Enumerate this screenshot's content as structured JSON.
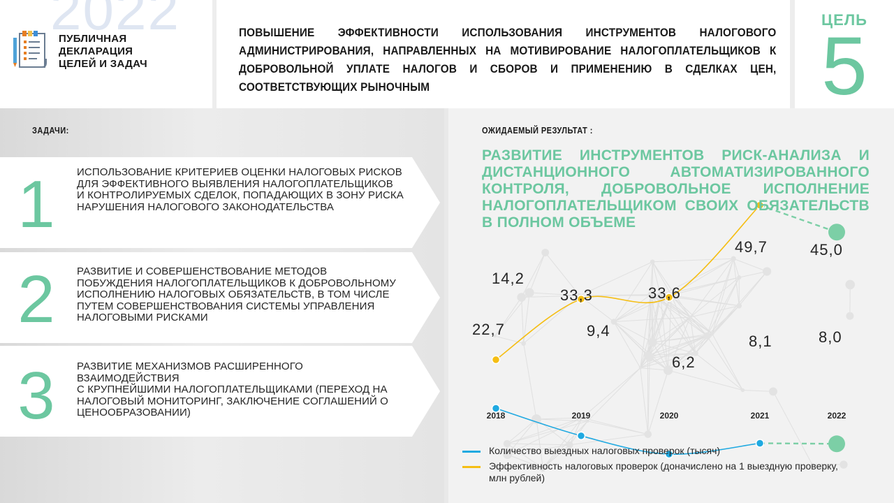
{
  "header": {
    "brand_year": "2022",
    "brand_lines": [
      "ПУБЛИЧНАЯ",
      "ДЕКЛАРАЦИЯ",
      "ЦЕЛЕЙ И ЗАДАЧ"
    ],
    "title": "ПОВЫШЕНИЕ ЭФФЕКТИВНОСТИ ИСПОЛЬЗОВАНИЯ ИНСТРУМЕНТОВ НАЛОГОВОГО АДМИНИСТРИРОВАНИЯ, НАПРАВЛЕННЫХ НА МОТИВИРОВАНИЕ НАЛОГОПЛАТЕЛЬЩИКОВ К ДОБРОВОЛЬНОЙ УПЛАТЕ НАЛОГОВ И СБОРОВ И ПРИМЕНЕНИЮ В СДЕЛКАХ ЦЕН, СООТВЕТСТВУЮЩИХ РЫНОЧНЫМ",
    "goal_label": "ЦЕЛЬ",
    "goal_number": "5"
  },
  "tasks": {
    "label": "ЗАДАЧИ:",
    "items": [
      {
        "number": "1",
        "text": "ИСПОЛЬЗОВАНИЕ КРИТЕРИЕВ ОЦЕНКИ НАЛОГОВЫХ РИСКОВ ДЛЯ ЭФФЕКТИВНОГО ВЫЯВЛЕНИЯ НАЛОГОПЛАТЕЛЬЩИКОВ\nИ КОНТРОЛИРУЕМЫХ СДЕЛОК, ПОПАДАЮЩИХ В ЗОНУ РИСКА НАРУШЕНИЯ НАЛОГОВОГО ЗАКОНОДАТЕЛЬСТВА"
      },
      {
        "number": "2",
        "text": "РАЗВИТИЕ И СОВЕРШЕНСТВОВАНИЕ МЕТОДОВ ПОБУЖДЕНИЯ НАЛОГОПЛАТЕЛЬЩИКОВ К ДОБРОВОЛЬНОМУ ИСПОЛНЕНИЮ НАЛОГОВЫХ ОБЯЗАТЕЛЬСТВ, В ТОМ ЧИСЛЕ ПУТЕМ СОВЕРШЕНСТВОВАНИЯ СИСТЕМЫ УПРАВЛЕНИЯ НАЛОГОВЫМИ РИСКАМИ"
      },
      {
        "number": "3",
        "text": "РАЗВИТИЕ МЕХАНИЗМОВ РАСШИРЕННОГО ВЗАИМОДЕЙСТВИЯ\nС КРУПНЕЙШИМИ НАЛОГОПЛАТЕЛЬЩИКАМИ (ПЕРЕХОД НА НАЛОГОВЫЙ МОНИТОРИНГ, ЗАКЛЮЧЕНИЕ СОГЛАШЕНИЙ О ЦЕНООБРАЗОВАНИИ)"
      }
    ]
  },
  "result": {
    "label": "ОЖИДАЕМЫЙ РЕЗУЛЬТАТ :",
    "text": "РАЗВИТИЕ ИНСТРУМЕНТОВ РИСК-АНАЛИЗА И ДИСТАНЦИОННОГО АВТОМАТИЗИРОВАННОГО КОНТРОЛЯ, ДОБРОВОЛЬНОЕ ИСПОЛНЕНИЕ НАЛОГОПЛАТЕЛЬЩИКОМ СВОИХ ОБЯЗАТЕЛЬСТВ В ПОЛНОМ ОБЪЕМЕ"
  },
  "colors": {
    "accent": "#6cc7a0",
    "series_blue": "#1fa9e1",
    "series_yellow": "#f5be14",
    "target_marker": "#7ccfa6"
  },
  "chart_data": {
    "type": "line",
    "categories": [
      "2018",
      "2019",
      "2020",
      "2021",
      "2022"
    ],
    "series": [
      {
        "name": "Количество выездных налоговых проверок (тысяч)",
        "color": "#1fa9e1",
        "values": [
          14.2,
          9.4,
          6.2,
          8.1,
          8.0
        ],
        "labels": [
          "14,2",
          "9,4",
          "6,2",
          "8,1",
          "8,0"
        ],
        "target_index": 4
      },
      {
        "name": "Эффективность налоговых проверок (доначислено на 1 выездную проверку, млн рублей)",
        "color": "#f5be14",
        "values": [
          22.7,
          33.3,
          33.6,
          49.7,
          45.0
        ],
        "labels": [
          "22,7",
          "33,3",
          "33,6",
          "49,7",
          "45,0"
        ],
        "target_index": 4
      }
    ],
    "legend_position": "bottom",
    "grid": false
  }
}
